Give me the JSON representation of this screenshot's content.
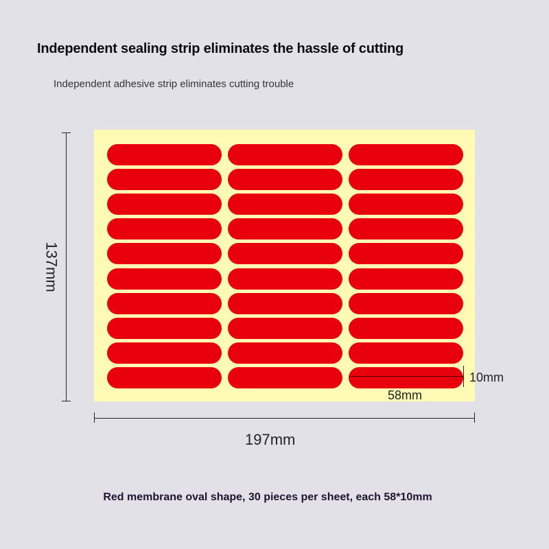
{
  "title": "Independent sealing strip eliminates the hassle of cutting",
  "subtitle": "Independent adhesive strip eliminates cutting trouble",
  "sheet": {
    "rows": 10,
    "columns": 3,
    "strip_color": "#e8000c",
    "sheet_color": "#fffab4"
  },
  "dimensions": {
    "height": "137mm",
    "width": "197mm",
    "strip_length": "58mm",
    "strip_height": "10mm"
  },
  "caption": "Red membrane oval shape, 30 pieces per sheet, each 58*10mm"
}
